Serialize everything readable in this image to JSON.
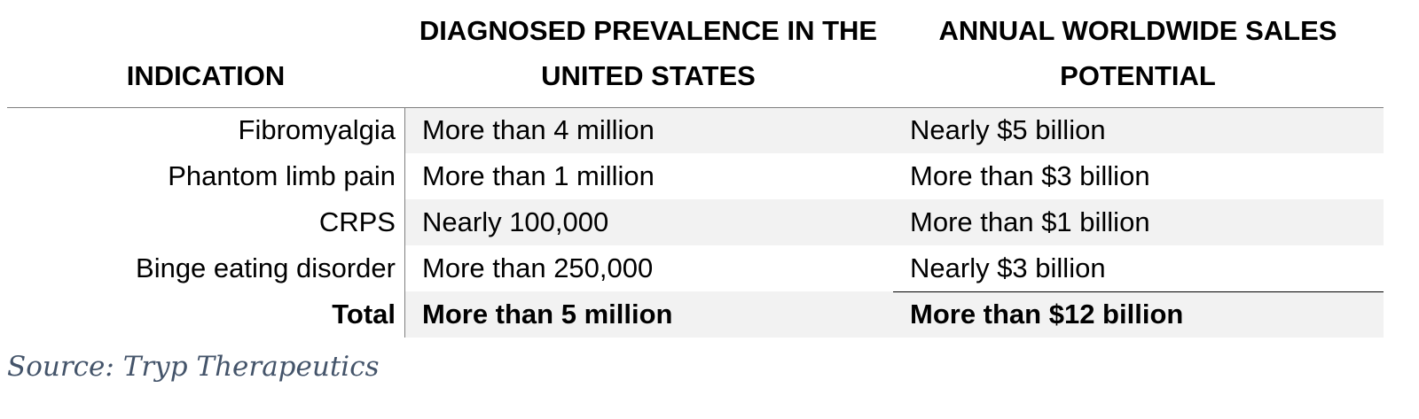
{
  "table": {
    "headers": {
      "indication": "INDICATION",
      "prevalence_line1": "DIAGNOSED PREVALENCE IN THE",
      "prevalence_line2": "UNITED STATES",
      "sales_line1": "ANNUAL WORLDWIDE SALES",
      "sales_line2": "POTENTIAL"
    },
    "rows": [
      {
        "indication": "Fibromyalgia",
        "prevalence": "More than 4 million",
        "sales": "Nearly $5 billion"
      },
      {
        "indication": "Phantom limb pain",
        "prevalence": "More than 1 million",
        "sales": "More than $3 billion"
      },
      {
        "indication": "CRPS",
        "prevalence": "Nearly 100,000",
        "sales": "More than $1 billion"
      },
      {
        "indication": "Binge eating disorder",
        "prevalence": "More than 250,000",
        "sales": "Nearly $3 billion"
      }
    ],
    "total": {
      "indication": "Total",
      "prevalence": "More than 5 million",
      "sales": "More than $12 billion"
    }
  },
  "source": "Source: Tryp Therapeutics",
  "colors": {
    "row_shade": "#f2f2f2",
    "rule": "#7f7f7f",
    "source_text": "#44546a"
  }
}
